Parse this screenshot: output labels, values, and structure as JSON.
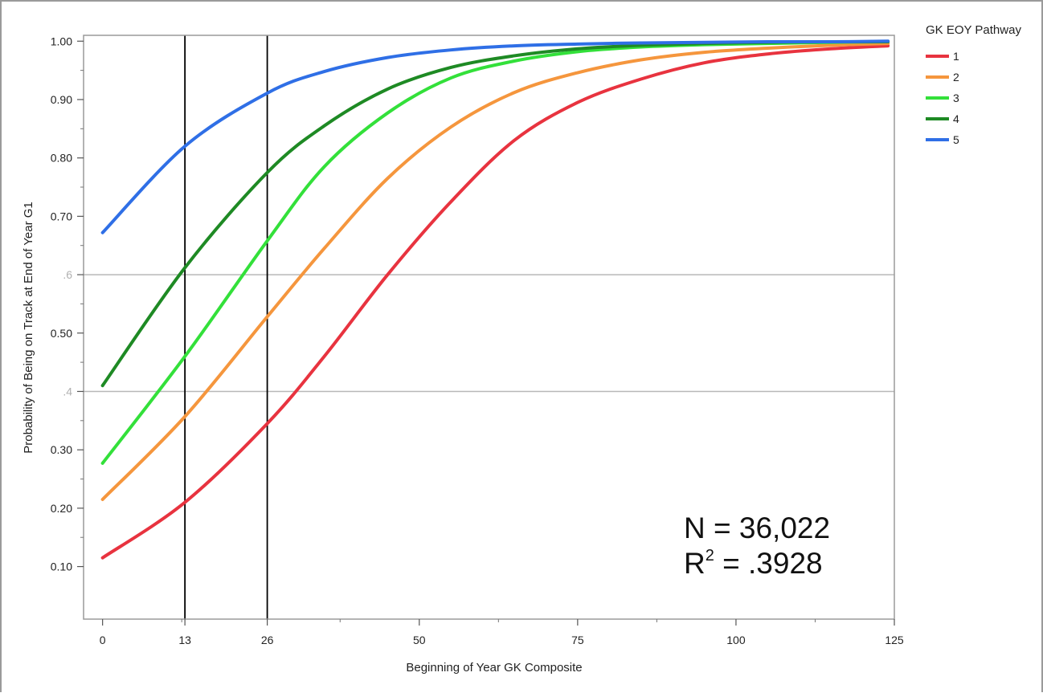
{
  "chart_data": {
    "type": "line",
    "title": "",
    "xlabel": "Beginning of Year GK Composite",
    "ylabel": "Probability of Being on Track at End of Year G1",
    "xlim": [
      -3,
      125
    ],
    "ylim": [
      0.01,
      1.01
    ],
    "x_ticks": [
      {
        "value": 0,
        "label": "0"
      },
      {
        "value": 13,
        "label": "13"
      },
      {
        "value": 26,
        "label": "26"
      },
      {
        "value": 50,
        "label": "50"
      },
      {
        "value": 75,
        "label": "75"
      },
      {
        "value": 100,
        "label": "100"
      },
      {
        "value": 125,
        "label": "125"
      }
    ],
    "x_minor_ticks": [
      12.5,
      37.5,
      62.5,
      87.5,
      112.5
    ],
    "y_ticks": [
      {
        "value": 1.0,
        "label": "1.00",
        "muted": false
      },
      {
        "value": 0.9,
        "label": "0.90",
        "muted": false
      },
      {
        "value": 0.8,
        "label": "0.80",
        "muted": false
      },
      {
        "value": 0.7,
        "label": "0.70",
        "muted": false
      },
      {
        "value": 0.6,
        "label": ".6",
        "muted": true
      },
      {
        "value": 0.5,
        "label": "0.50",
        "muted": false
      },
      {
        "value": 0.4,
        "label": ".4",
        "muted": true
      },
      {
        "value": 0.3,
        "label": "0.30",
        "muted": false
      },
      {
        "value": 0.2,
        "label": "0.20",
        "muted": false
      },
      {
        "value": 0.1,
        "label": "0.10",
        "muted": false
      }
    ],
    "reference_hlines": [
      0.6,
      0.4
    ],
    "reference_vlines": [
      13,
      26
    ],
    "legend": {
      "title": "GK EOY Pathway",
      "position": "top-right"
    },
    "series": [
      {
        "name": "1",
        "color": "#e8333f",
        "x": [
          0,
          13,
          26,
          35,
          45,
          55,
          65,
          75,
          85,
          95,
          105,
          115,
          124
        ],
        "y": [
          0.115,
          0.21,
          0.345,
          0.46,
          0.6,
          0.725,
          0.83,
          0.895,
          0.935,
          0.963,
          0.978,
          0.987,
          0.992
        ]
      },
      {
        "name": "2",
        "color": "#f5963d",
        "x": [
          0,
          13,
          26,
          35,
          45,
          55,
          65,
          75,
          85,
          95,
          105,
          115,
          124
        ],
        "y": [
          0.215,
          0.357,
          0.528,
          0.645,
          0.765,
          0.853,
          0.912,
          0.946,
          0.968,
          0.981,
          0.988,
          0.993,
          0.996
        ]
      },
      {
        "name": "3",
        "color": "#33e03a",
        "x": [
          0,
          13,
          26,
          35,
          45,
          55,
          65,
          75,
          85,
          95,
          105,
          115,
          124
        ],
        "y": [
          0.277,
          0.46,
          0.658,
          0.785,
          0.877,
          0.937,
          0.966,
          0.982,
          0.99,
          0.994,
          0.996,
          0.998,
          0.999
        ]
      },
      {
        "name": "4",
        "color": "#1e8a24",
        "x": [
          0,
          13,
          26,
          35,
          45,
          55,
          65,
          75,
          85,
          95,
          105,
          115,
          124
        ],
        "y": [
          0.41,
          0.612,
          0.775,
          0.855,
          0.918,
          0.955,
          0.975,
          0.987,
          0.993,
          0.996,
          0.998,
          0.999,
          0.999
        ]
      },
      {
        "name": "5",
        "color": "#2f6fe6",
        "x": [
          0,
          13,
          26,
          35,
          45,
          55,
          65,
          75,
          85,
          95,
          105,
          115,
          124
        ],
        "y": [
          0.672,
          0.82,
          0.911,
          0.948,
          0.972,
          0.985,
          0.992,
          0.995,
          0.997,
          0.998,
          0.999,
          0.999,
          1.0
        ]
      }
    ],
    "annotations": {
      "n_text": "N = 36,022",
      "r2_prefix": "R",
      "r2_sup": "2",
      "r2_suffix": " = .3928"
    },
    "colors": {
      "frame": "#9a9a9a",
      "gridline": "#b8b8b8",
      "reference_vline": "#000000",
      "muted_label": "#b0b0b0"
    }
  }
}
